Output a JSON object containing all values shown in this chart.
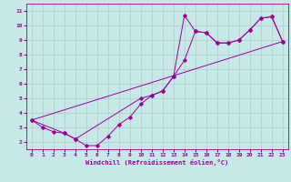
{
  "title": "",
  "xlabel": "Windchill (Refroidissement éolien,°C)",
  "bg_color": "#c8e8e8",
  "line_color": "#990099",
  "marker_color": "#990099",
  "xlim": [
    -0.5,
    23.5
  ],
  "ylim": [
    1.5,
    11.5
  ],
  "xticks": [
    0,
    1,
    2,
    3,
    4,
    5,
    6,
    7,
    8,
    9,
    10,
    11,
    12,
    13,
    14,
    15,
    16,
    17,
    18,
    19,
    20,
    21,
    22,
    23
  ],
  "yticks": [
    2,
    3,
    4,
    5,
    6,
    7,
    8,
    9,
    10,
    11
  ],
  "grid_color": "#aacccc",
  "series1_x": [
    0,
    1,
    2,
    3,
    4,
    5,
    6,
    7,
    8,
    9,
    10,
    11,
    12,
    13,
    14,
    15,
    16,
    17,
    18,
    19,
    20,
    21,
    22,
    23
  ],
  "series1_y": [
    3.5,
    3.0,
    2.7,
    2.6,
    2.2,
    1.75,
    1.75,
    2.4,
    3.2,
    3.7,
    4.6,
    5.2,
    5.5,
    6.5,
    7.6,
    9.6,
    9.5,
    8.8,
    8.8,
    9.0,
    9.7,
    10.5,
    10.6,
    8.9
  ],
  "series2_x": [
    0,
    3,
    4,
    10,
    11,
    12,
    13,
    14,
    15,
    16,
    17,
    18,
    19,
    20,
    21,
    22,
    23
  ],
  "series2_y": [
    3.5,
    2.6,
    2.2,
    5.0,
    5.2,
    5.5,
    6.5,
    10.7,
    9.6,
    9.5,
    8.8,
    8.8,
    9.0,
    9.7,
    10.5,
    10.6,
    8.9
  ],
  "series3_x": [
    0,
    23
  ],
  "series3_y": [
    3.5,
    8.9
  ]
}
